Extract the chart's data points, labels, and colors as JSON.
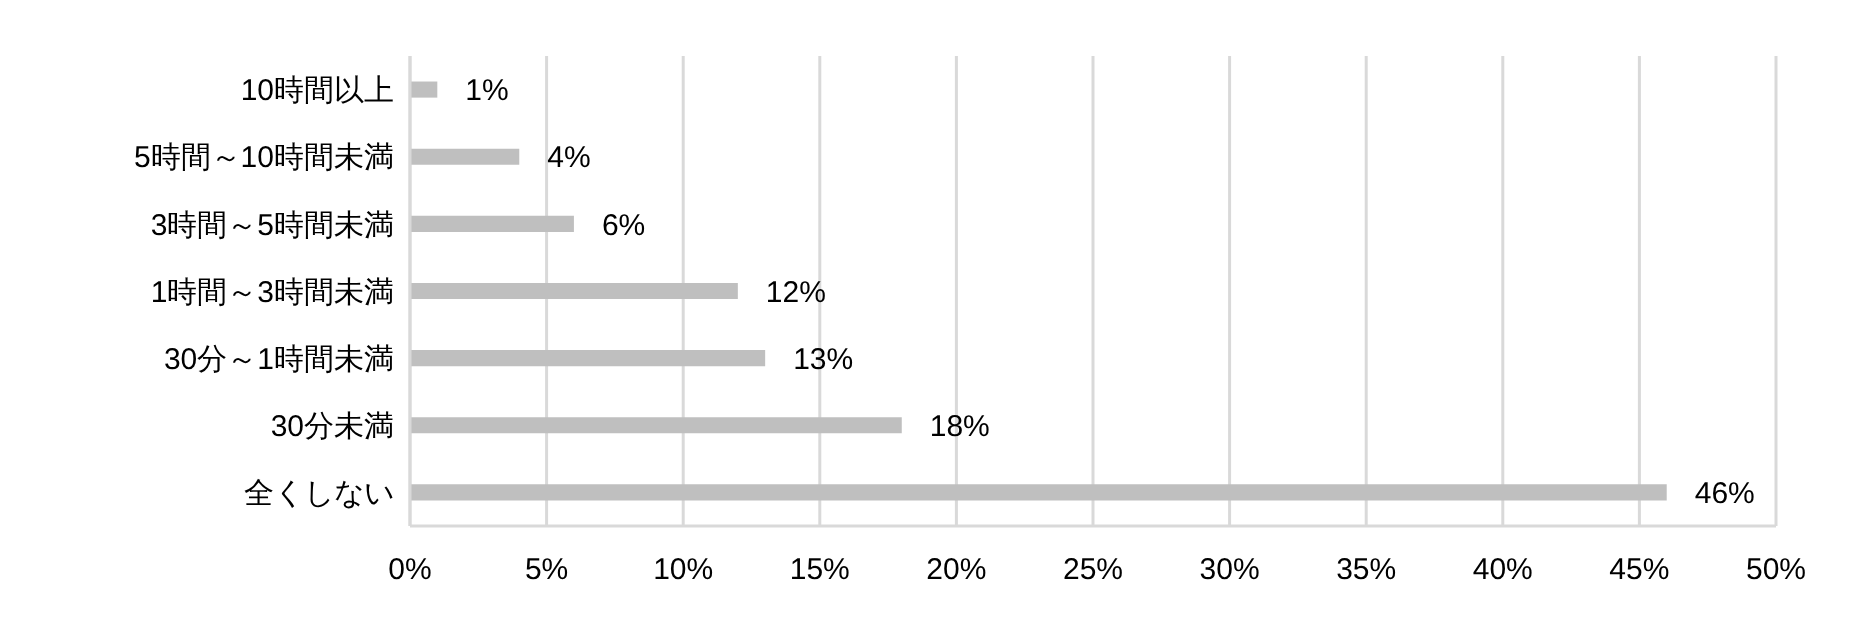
{
  "chart_data": {
    "type": "bar",
    "orientation": "horizontal",
    "categories": [
      "10時間以上",
      "5時間～10時間未満",
      "3時間～5時間未満",
      "1時間～3時間未満",
      "30分～1時間未満",
      "30分未満",
      "全くしない"
    ],
    "values": [
      1,
      4,
      6,
      12,
      13,
      18,
      46
    ],
    "value_labels": [
      "1%",
      "4%",
      "6%",
      "12%",
      "13%",
      "18%",
      "46%"
    ],
    "color": "#bfbfbf",
    "xlim": [
      0,
      50
    ],
    "xticks": [
      {
        "value": 0,
        "label": "0%"
      },
      {
        "value": 5,
        "label": "5%"
      },
      {
        "value": 10,
        "label": "10%"
      },
      {
        "value": 15,
        "label": "15%"
      },
      {
        "value": 20,
        "label": "20%"
      },
      {
        "value": 25,
        "label": "25%"
      },
      {
        "value": 30,
        "label": "30%"
      },
      {
        "value": 35,
        "label": "35%"
      },
      {
        "value": 40,
        "label": "40%"
      },
      {
        "value": 45,
        "label": "45%"
      },
      {
        "value": 50,
        "label": "50%"
      }
    ],
    "grid": "x"
  }
}
